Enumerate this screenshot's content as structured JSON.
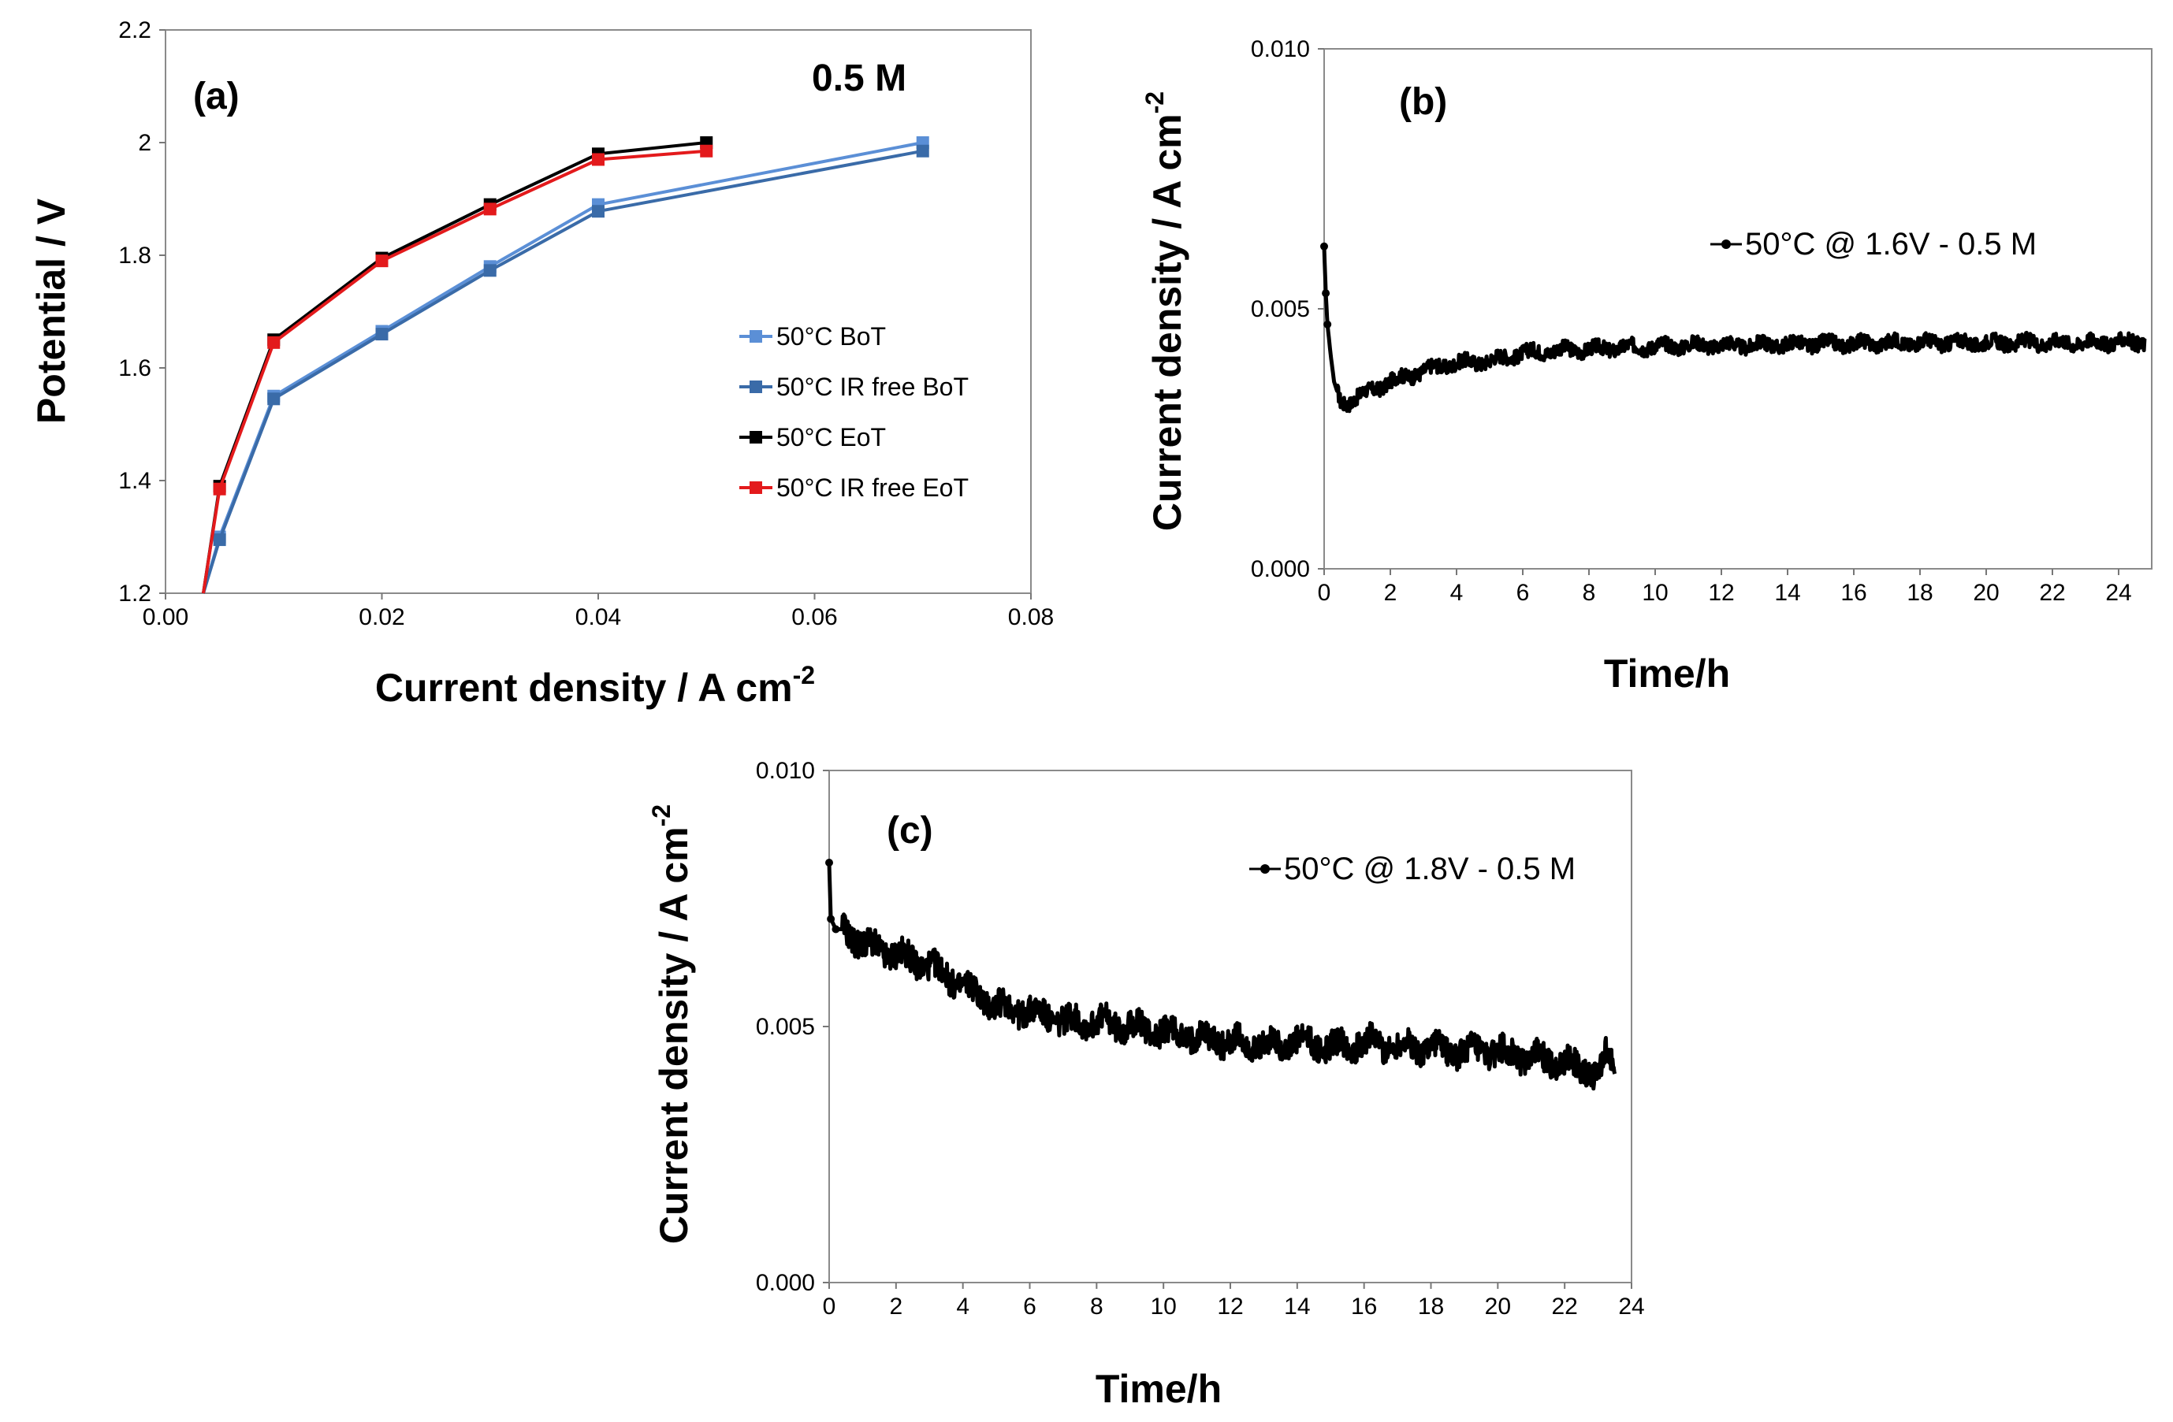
{
  "chart_data": [
    {
      "panel": "(a)",
      "type": "line",
      "annotation": "0.5 M",
      "xlabel": "Current density  / A cm",
      "xlabel_sup": "-2",
      "ylabel": "Potential  / V",
      "xlim": [
        0,
        0.08
      ],
      "ylim": [
        1.2,
        2.2
      ],
      "xticks": [
        "0.00",
        "0.02",
        "0.04",
        "0.06",
        "0.08"
      ],
      "yticks": [
        "1.2",
        "1.4",
        "1.6",
        "1.8",
        "2",
        "2.2"
      ],
      "grid": false,
      "legend_position": "right-middle",
      "series": [
        {
          "name": "50°C BoT",
          "color": "#5b8fd6",
          "x": [
            0.0035,
            0.005,
            0.01,
            0.02,
            0.03,
            0.04,
            0.07
          ],
          "y": [
            1.2,
            1.3,
            1.55,
            1.665,
            1.78,
            1.89,
            2.0
          ]
        },
        {
          "name": "50°C IR free BoT",
          "color": "#3a6ba8",
          "x": [
            0.0035,
            0.005,
            0.01,
            0.02,
            0.03,
            0.04,
            0.07
          ],
          "y": [
            1.2,
            1.295,
            1.545,
            1.66,
            1.773,
            1.878,
            1.985
          ]
        },
        {
          "name": "50°C EoT",
          "color": "#000000",
          "x": [
            0.0035,
            0.005,
            0.01,
            0.02,
            0.03,
            0.04,
            0.05
          ],
          "y": [
            1.2,
            1.39,
            1.65,
            1.795,
            1.89,
            1.98,
            2.0
          ]
        },
        {
          "name": "50°C IR free EoT",
          "color": "#e31a1c",
          "x": [
            0.0035,
            0.005,
            0.01,
            0.02,
            0.03,
            0.04,
            0.05
          ],
          "y": [
            1.2,
            1.385,
            1.645,
            1.79,
            1.882,
            1.97,
            1.985
          ]
        }
      ]
    },
    {
      "panel": "(b)",
      "type": "line",
      "xlabel": "Time/h",
      "ylabel": "Current density  / A cm",
      "ylabel_sup": "-2",
      "xlim": [
        0,
        25
      ],
      "ylim": [
        0,
        0.01
      ],
      "xticks": [
        "0",
        "2",
        "4",
        "6",
        "8",
        "10",
        "12",
        "14",
        "16",
        "18",
        "20",
        "22",
        "24"
      ],
      "yticks": [
        "0.000",
        "0.005",
        "0.010"
      ],
      "grid": false,
      "legend_position": "top-right",
      "series": [
        {
          "name": "50°C  @ 1.6V - 0.5 M",
          "color": "#000000",
          "x": [
            0,
            0.05,
            0.1,
            0.2,
            0.3,
            0.5,
            0.7,
            1,
            1.5,
            2,
            2.5,
            3,
            3.5,
            4,
            5,
            6,
            7,
            8,
            9,
            10,
            11,
            12,
            13,
            14,
            15,
            16,
            17,
            18,
            19,
            20,
            21,
            22,
            23,
            24,
            24.8
          ],
          "y": [
            0.0062,
            0.0053,
            0.0047,
            0.0041,
            0.0036,
            0.0032,
            0.0032,
            0.0033,
            0.00345,
            0.0036,
            0.0037,
            0.0038,
            0.0039,
            0.00395,
            0.004,
            0.00415,
            0.0042,
            0.00422,
            0.00425,
            0.00428,
            0.0043,
            0.0043,
            0.0043,
            0.00432,
            0.00433,
            0.00433,
            0.00434,
            0.00435,
            0.00435,
            0.00434,
            0.00435,
            0.00435,
            0.00435,
            0.00436,
            0.00436
          ],
          "noise": 0.00014
        }
      ]
    },
    {
      "panel": "(c)",
      "type": "line",
      "xlabel": "Time/h",
      "ylabel": "Current density  / A cm",
      "ylabel_sup": "-2",
      "xlim": [
        0,
        24
      ],
      "ylim": [
        0,
        0.01
      ],
      "xticks": [
        "0",
        "2",
        "4",
        "6",
        "8",
        "10",
        "12",
        "14",
        "16",
        "18",
        "20",
        "22",
        "24"
      ],
      "yticks": [
        "0.000",
        "0.005",
        "0.010"
      ],
      "grid": false,
      "legend_position": "top-right",
      "series": [
        {
          "name": "50°C  @ 1.8V - 0.5 M",
          "color": "#000000",
          "x": [
            0,
            0.05,
            0.2,
            0.5,
            1,
            1.5,
            2,
            3,
            4,
            5,
            6,
            7,
            8,
            9,
            10,
            11,
            12,
            13,
            14,
            15,
            16,
            17,
            18,
            19,
            20,
            21,
            22,
            22.5,
            23,
            23.2,
            23.5
          ],
          "y": [
            0.0082,
            0.0071,
            0.0069,
            0.0069,
            0.0066,
            0.0065,
            0.0064,
            0.0062,
            0.0058,
            0.0054,
            0.0053,
            0.0051,
            0.0051,
            0.005,
            0.0049,
            0.0048,
            0.0047,
            0.0046,
            0.0047,
            0.0046,
            0.0047,
            0.0046,
            0.0046,
            0.0045,
            0.0045,
            0.0044,
            0.0043,
            0.0042,
            0.004,
            0.0044,
            0.0043
          ],
          "noise": 0.00028
        }
      ]
    }
  ]
}
